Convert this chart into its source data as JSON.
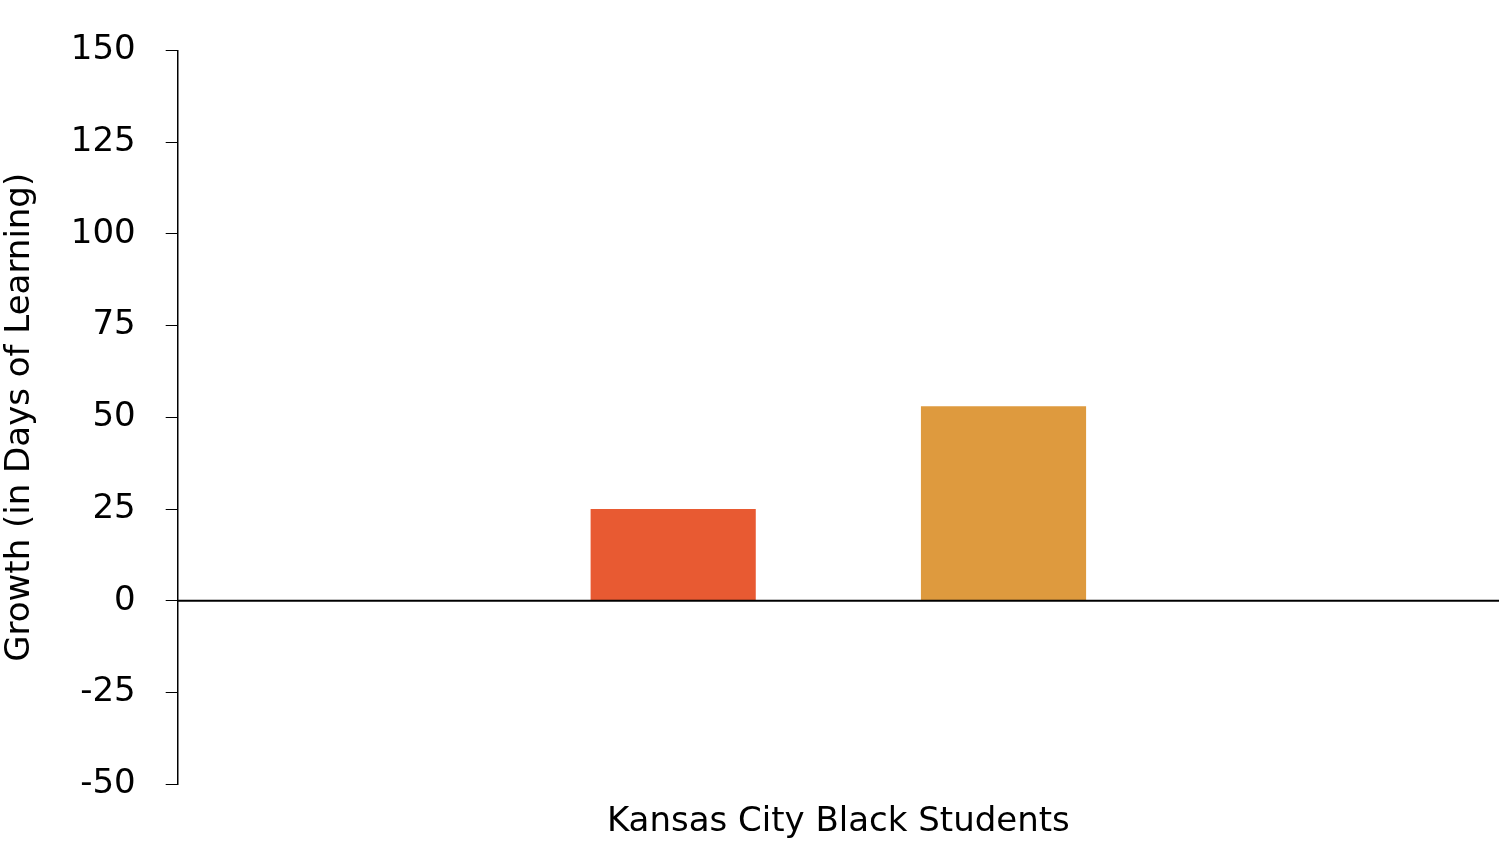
{
  "chart_data": {
    "type": "bar",
    "ylabel": "Growth (in Days of Learning)",
    "categories": [
      "Kansas City Black Students"
    ],
    "series": [
      {
        "color": "#e85a32",
        "values": [
          25
        ]
      },
      {
        "color": "#de9a3e",
        "values": [
          53
        ]
      }
    ],
    "ylim": [
      -50,
      150
    ],
    "yticks": [
      -50,
      -25,
      0,
      25,
      50,
      75,
      100,
      125,
      150
    ],
    "ref_lines": [
      {
        "axis": "y",
        "value": 0,
        "color": "#000000"
      }
    ],
    "legend": false,
    "grid": false
  }
}
